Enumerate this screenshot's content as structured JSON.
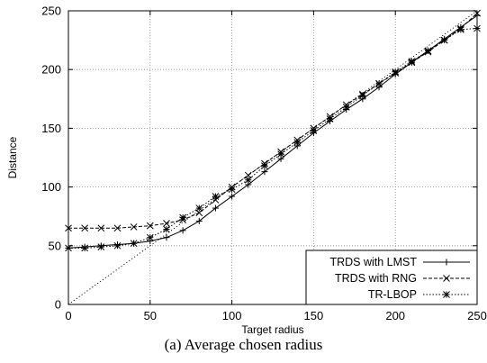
{
  "caption": "(a) Average chosen radius",
  "chart_data": {
    "type": "line",
    "xlabel": "Target radius",
    "ylabel": "Distance",
    "xlim": [
      0,
      250
    ],
    "ylim": [
      0,
      250
    ],
    "xticks": [
      0,
      50,
      100,
      150,
      200,
      250
    ],
    "yticks": [
      0,
      50,
      100,
      150,
      200,
      250
    ],
    "grid": true,
    "legend_position": "bottom-right",
    "reference_line": {
      "style": "dotted",
      "points": [
        [
          0,
          0
        ],
        [
          250,
          250
        ]
      ]
    },
    "series": [
      {
        "name": "TRDS with LMST",
        "marker": "plus",
        "dash": "solid",
        "x": [
          0,
          10,
          20,
          30,
          40,
          50,
          60,
          70,
          80,
          90,
          100,
          110,
          120,
          130,
          140,
          150,
          160,
          170,
          180,
          190,
          200,
          210,
          220,
          230,
          240,
          250
        ],
        "y": [
          48,
          49,
          50,
          51,
          52,
          54,
          57,
          63,
          71,
          82,
          92,
          102,
          113,
          124,
          135,
          146,
          156,
          166,
          175,
          185,
          196,
          206,
          216,
          226,
          236,
          246
        ]
      },
      {
        "name": "TRDS with RNG",
        "marker": "x",
        "dash": "dashed",
        "x": [
          0,
          10,
          20,
          30,
          40,
          50,
          60,
          70,
          80,
          90,
          100,
          110,
          120,
          130,
          140,
          150,
          160,
          170,
          180,
          190,
          200,
          210,
          220,
          230,
          240,
          250
        ],
        "y": [
          65,
          65,
          65,
          65,
          66,
          67,
          69,
          72,
          78,
          89,
          100,
          110,
          120,
          130,
          140,
          150,
          160,
          170,
          179,
          188,
          197,
          206,
          215,
          225,
          235,
          248
        ]
      },
      {
        "name": "TR-LBOP",
        "marker": "star",
        "dash": "dotted",
        "x": [
          0,
          10,
          20,
          30,
          40,
          50,
          60,
          70,
          80,
          90,
          100,
          110,
          120,
          130,
          140,
          150,
          160,
          170,
          180,
          190,
          200,
          210,
          220,
          230,
          240,
          250
        ],
        "y": [
          48,
          48,
          49,
          50,
          52,
          57,
          64,
          74,
          82,
          92,
          98,
          106,
          118,
          128,
          138,
          148,
          158,
          168,
          178,
          188,
          198,
          207,
          216,
          225,
          234,
          235
        ]
      }
    ]
  }
}
